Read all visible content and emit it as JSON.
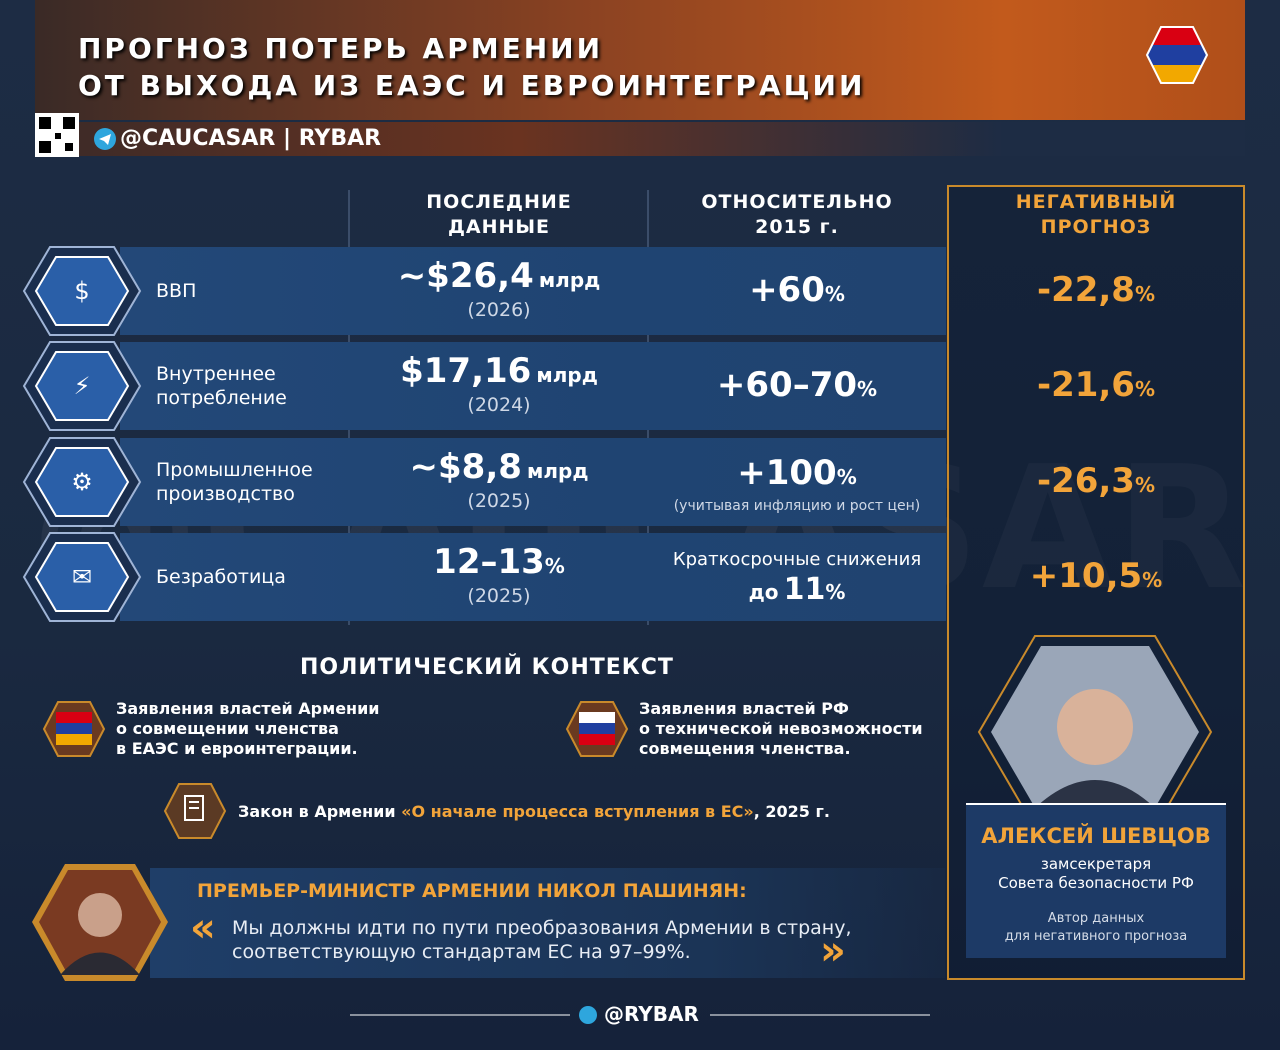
{
  "header": {
    "title": [
      "ПРОГНОЗ ПОТЕРЬ АРМЕНИИ",
      "ОТ ВЫХОДА ИЗ ЕАЭС И ЕВРОИНТЕГРАЦИИ"
    ],
    "handle": "@CAUCASAR | RYBAR"
  },
  "watermark": "@CAUCASAR",
  "table": {
    "headers": [
      "ПОСЛЕДНИЕ\nДАННЫЕ",
      "ОТНОСИТЕЛЬНО\n2015 г.",
      "НЕГАТИВНЫЙ\nПРОГНОЗ"
    ],
    "rows": [
      {
        "label": "ВВП",
        "latest": {
          "value": "~$26,4",
          "unit": "млрд",
          "year": "(2026)"
        },
        "relative": {
          "value": "+60",
          "unit": "%"
        },
        "negative": {
          "value": "-22,8",
          "unit": "%"
        }
      },
      {
        "label": "Внутреннее\nпотребление",
        "latest": {
          "value": "$17,16",
          "unit": "млрд",
          "year": "(2024)"
        },
        "relative": {
          "value": "+60–70",
          "unit": "%"
        },
        "negative": {
          "value": "-21,6",
          "unit": "%"
        }
      },
      {
        "label": "Промышленное\nпроизводство",
        "latest": {
          "value": "~$8,8",
          "unit": "млрд",
          "year": "(2025)"
        },
        "relative": {
          "value": "+100",
          "unit": "%",
          "note": "(учитывая инфляцию и рост цен)"
        },
        "negative": {
          "value": "-26,3",
          "unit": "%"
        }
      },
      {
        "label": "Безработица",
        "latest": {
          "value": "12–13",
          "unit": "%",
          "year": "(2025)"
        },
        "relative": {
          "intro": "Краткосрочные снижения",
          "prefix": "до",
          "value": "11",
          "unit": "%"
        },
        "negative": {
          "value": "+10,5",
          "unit": "%"
        }
      }
    ]
  },
  "context": {
    "title": "ПОЛИТИЧЕСКИЙ КОНТЕКСТ",
    "statements": [
      "Заявления властей Армении\nо совмещении членства\nв ЕАЭС и евроинтеграции.",
      "Заявления властей РФ\nо технической невозможности\nсовмещения членства."
    ],
    "law": {
      "prefix": "Закон в Армении",
      "name": "«О начале процесса вступления в ЕС»",
      "suffix": ", 2025 г."
    }
  },
  "quote": {
    "speaker": "ПРЕМЬЕР-МИНИСТР АРМЕНИИ НИКОЛ ПАШИНЯН:",
    "text": "Мы должны идти по пути преобразования Армении в страну,\nсоответствующую стандартам ЕС на 97–99%."
  },
  "person": {
    "name": "АЛЕКСЕЙ ШЕВЦОВ",
    "role": "замсекретаря\nСовета безопасности РФ",
    "note": "Автор данных\nдля негативного прогноза"
  },
  "footer": "@RYBAR"
}
